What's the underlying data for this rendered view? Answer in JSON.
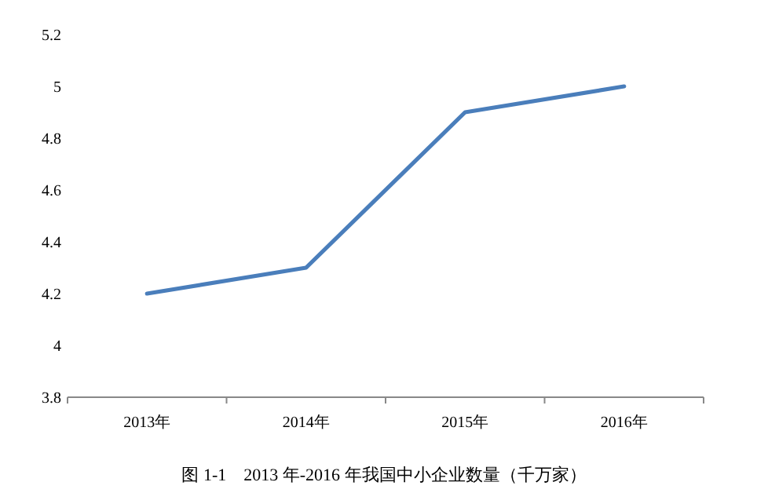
{
  "chart_data": {
    "type": "line",
    "categories": [
      "2013年",
      "2014年",
      "2015年",
      "2016年"
    ],
    "series": [
      {
        "color": "#4a7ebb",
        "values": [
          4.2,
          4.3,
          4.9,
          5.0
        ]
      }
    ],
    "ylim": [
      3.8,
      5.2
    ],
    "yticks": [
      3.8,
      4,
      4.2,
      4.4,
      4.6,
      4.8,
      5,
      5.2
    ],
    "annotations": [
      "图 1-1    2013 年-2016 年我国中小企业数量（千万家）"
    ]
  }
}
